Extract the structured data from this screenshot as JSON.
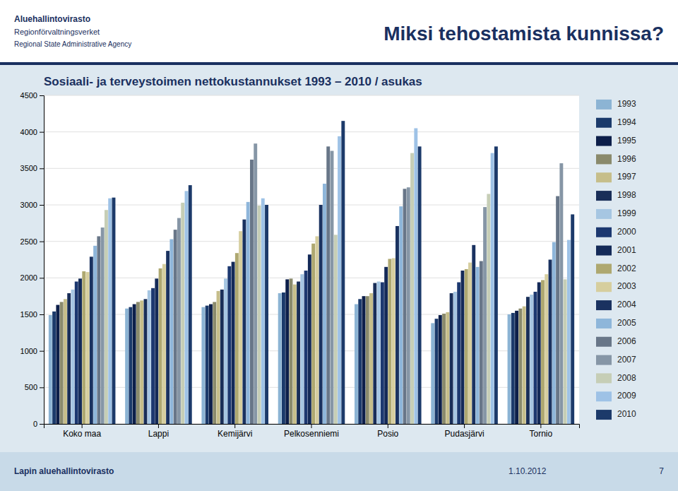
{
  "chart_data": {
    "type": "bar",
    "title": "Sosiaali- ja terveystoimen nettokustannukset 1993 – 2010 / asukas",
    "annotations": [
      "Miksi tehostamista kunnissa?",
      "Aluehallintovirasto",
      "Regionförvaltningsverket",
      "Regional State Administrative Agency",
      "Lapin aluehallintovirasto",
      "1.10.2012",
      "7"
    ],
    "categories": [
      "Koko maa",
      "Lappi",
      "Kemijärvi",
      "Pelkosenniemi",
      "Posio",
      "Pudasjärvi",
      "Tornio"
    ],
    "series": [
      {
        "name": "1993",
        "color": "#8cb4d4",
        "values": [
          1490,
          1580,
          1600,
          1790,
          1640,
          1380,
          1500
        ]
      },
      {
        "name": "1994",
        "color": "#1b3a6b",
        "values": [
          1540,
          1600,
          1620,
          1800,
          1710,
          1440,
          1520
        ]
      },
      {
        "name": "1995",
        "color": "#0d1f4a",
        "values": [
          1630,
          1640,
          1640,
          1980,
          1750,
          1490,
          1550
        ]
      },
      {
        "name": "1996",
        "color": "#8a8a6c",
        "values": [
          1670,
          1670,
          1670,
          1990,
          1750,
          1510,
          1580
        ]
      },
      {
        "name": "1997",
        "color": "#c6be8a",
        "values": [
          1710,
          1690,
          1820,
          1910,
          1790,
          1530,
          1610
        ]
      },
      {
        "name": "1998",
        "color": "#192e58",
        "values": [
          1790,
          1710,
          1840,
          1950,
          1930,
          1790,
          1740
        ]
      },
      {
        "name": "1999",
        "color": "#a6c6e2",
        "values": [
          1840,
          1830,
          1990,
          2050,
          1950,
          1810,
          1770
        ]
      },
      {
        "name": "2000",
        "color": "#1c3870",
        "values": [
          1950,
          1860,
          2160,
          2100,
          1940,
          1940,
          1810
        ]
      },
      {
        "name": "2001",
        "color": "#142a58",
        "values": [
          1990,
          1990,
          2220,
          2320,
          2150,
          2100,
          1940
        ]
      },
      {
        "name": "2002",
        "color": "#aea870",
        "values": [
          2090,
          2130,
          2340,
          2470,
          2260,
          2120,
          1970
        ]
      },
      {
        "name": "2003",
        "color": "#d6ce9e",
        "values": [
          2080,
          2190,
          2640,
          2570,
          2270,
          2210,
          2050
        ]
      },
      {
        "name": "2004",
        "color": "#1a3260",
        "values": [
          2290,
          2370,
          2800,
          3000,
          2710,
          2450,
          2250
        ]
      },
      {
        "name": "2005",
        "color": "#8eb6da",
        "values": [
          2440,
          2530,
          3040,
          3290,
          2980,
          2150,
          2490
        ]
      },
      {
        "name": "2006",
        "color": "#687688",
        "values": [
          2570,
          2660,
          3620,
          3800,
          3220,
          2230,
          3120
        ]
      },
      {
        "name": "2007",
        "color": "#8696a6",
        "values": [
          2690,
          2820,
          3840,
          3740,
          3240,
          2970,
          3570
        ]
      },
      {
        "name": "2008",
        "color": "#c6ceb6",
        "values": [
          2930,
          3030,
          2990,
          2590,
          3710,
          3150,
          1980
        ]
      },
      {
        "name": "2009",
        "color": "#9ec2e6",
        "values": [
          3090,
          3190,
          3090,
          3940,
          4050,
          3710,
          2520
        ]
      },
      {
        "name": "2010",
        "color": "#1c3a6a",
        "values": [
          3100,
          3270,
          3000,
          4150,
          3800,
          3800,
          2870
        ]
      }
    ],
    "ylim": [
      0,
      4500
    ],
    "yticks": [
      0,
      500,
      1000,
      1500,
      2000,
      2500,
      3000,
      3500,
      4000,
      4500
    ],
    "grid": true,
    "legend": "right"
  }
}
